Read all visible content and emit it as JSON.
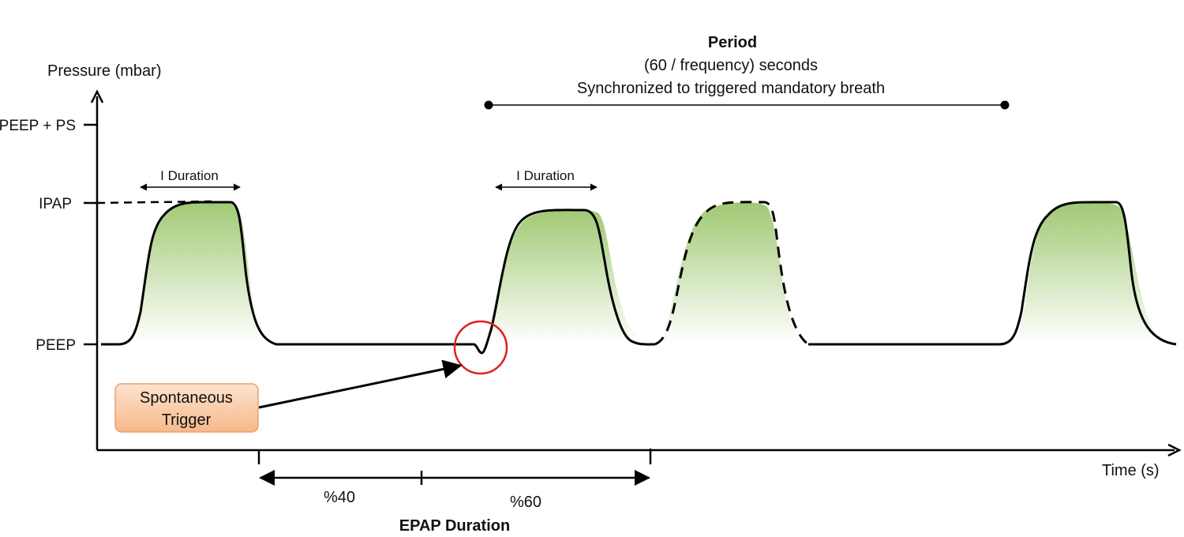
{
  "axes": {
    "y_label": "Pressure (mbar)",
    "x_label": "Time (s)",
    "y_ticks": [
      "PEEP + PS",
      "IPAP",
      "PEEP"
    ]
  },
  "period": {
    "title": "Period",
    "line1": "(60 / frequency) seconds",
    "line2": "Synchronized to triggered mandatory breath"
  },
  "i_duration_labels": [
    "I Duration",
    "I Duration"
  ],
  "trigger": {
    "line1": "Spontaneous",
    "line2": "Trigger"
  },
  "epap": {
    "pct_left": "%40",
    "pct_right": "%60",
    "title": "EPAP Duration"
  },
  "colors": {
    "breath_fill": "#8fbf5a",
    "trigger_circle": "#e02020",
    "trigger_box": "#f6b98a",
    "line": "#000000"
  }
}
